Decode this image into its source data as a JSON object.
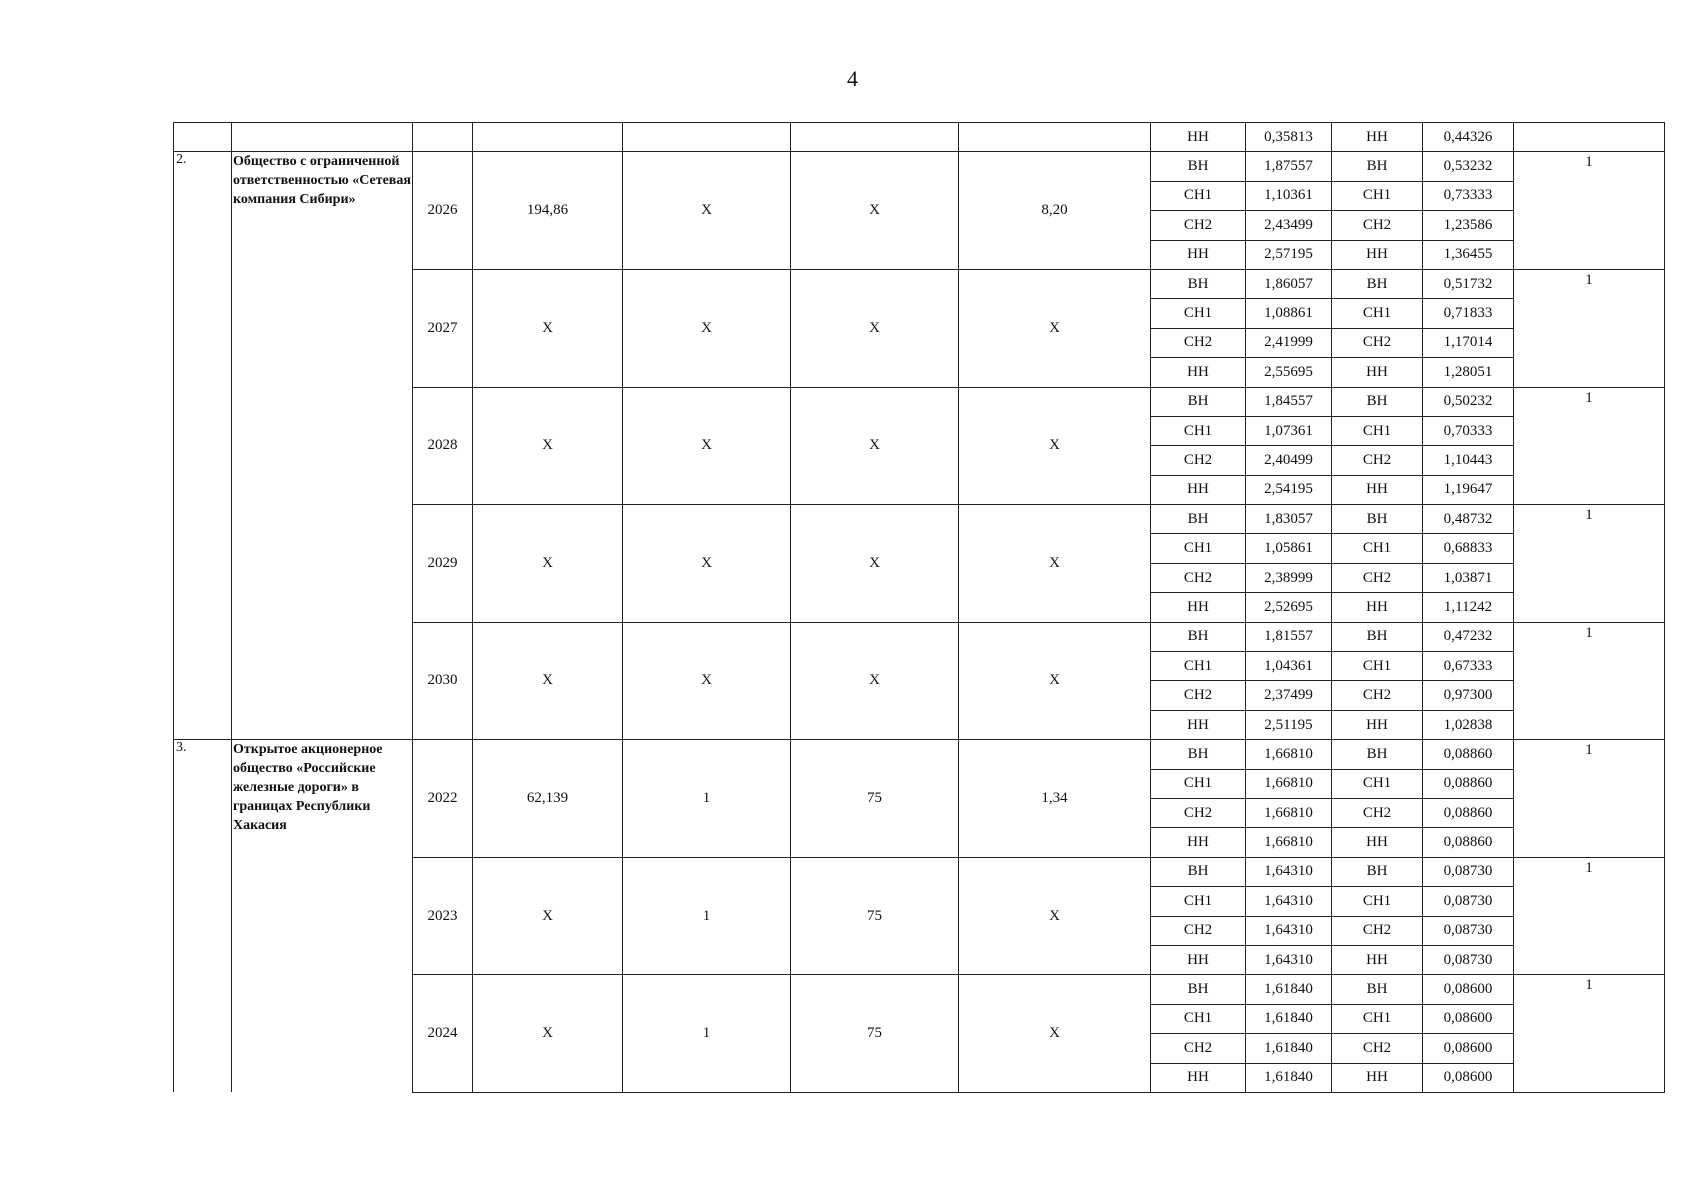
{
  "page_number": "4",
  "top_row": {
    "cells": [
      "НН",
      "0,35813",
      "НН",
      "0,44326"
    ]
  },
  "orgs": [
    {
      "num": "2.",
      "name": "Общество с ограниченной ответственностью «Сетевая компания Сибири»",
      "years": [
        {
          "year": "2026",
          "c1": "194,86",
          "c2": "X",
          "c3": "X",
          "c4": "8,20",
          "note": "1",
          "rows": [
            [
              "ВН",
              "1,87557",
              "ВН",
              "0,53232"
            ],
            [
              "СН1",
              "1,10361",
              "СН1",
              "0,73333"
            ],
            [
              "СН2",
              "2,43499",
              "СН2",
              "1,23586"
            ],
            [
              "НН",
              "2,57195",
              "НН",
              "1,36455"
            ]
          ]
        },
        {
          "year": "2027",
          "c1": "X",
          "c2": "X",
          "c3": "X",
          "c4": "X",
          "note": "1",
          "rows": [
            [
              "ВН",
              "1,86057",
              "ВН",
              "0,51732"
            ],
            [
              "СН1",
              "1,08861",
              "СН1",
              "0,71833"
            ],
            [
              "СН2",
              "2,41999",
              "СН2",
              "1,17014"
            ],
            [
              "НН",
              "2,55695",
              "НН",
              "1,28051"
            ]
          ]
        },
        {
          "year": "2028",
          "c1": "X",
          "c2": "X",
          "c3": "X",
          "c4": "X",
          "note": "1",
          "rows": [
            [
              "ВН",
              "1,84557",
              "ВН",
              "0,50232"
            ],
            [
              "СН1",
              "1,07361",
              "СН1",
              "0,70333"
            ],
            [
              "СН2",
              "2,40499",
              "СН2",
              "1,10443"
            ],
            [
              "НН",
              "2,54195",
              "НН",
              "1,19647"
            ]
          ]
        },
        {
          "year": "2029",
          "c1": "X",
          "c2": "X",
          "c3": "X",
          "c4": "X",
          "note": "1",
          "rows": [
            [
              "ВН",
              "1,83057",
              "ВН",
              "0,48732"
            ],
            [
              "СН1",
              "1,05861",
              "СН1",
              "0,68833"
            ],
            [
              "СН2",
              "2,38999",
              "СН2",
              "1,03871"
            ],
            [
              "НН",
              "2,52695",
              "НН",
              "1,11242"
            ]
          ]
        },
        {
          "year": "2030",
          "c1": "X",
          "c2": "X",
          "c3": "X",
          "c4": "X",
          "note": "1",
          "rows": [
            [
              "ВН",
              "1,81557",
              "ВН",
              "0,47232"
            ],
            [
              "СН1",
              "1,04361",
              "СН1",
              "0,67333"
            ],
            [
              "СН2",
              "2,37499",
              "СН2",
              "0,97300"
            ],
            [
              "НН",
              "2,51195",
              "НН",
              "1,02838"
            ]
          ]
        }
      ]
    },
    {
      "num": "3.",
      "name": "Открытое акционерное общество «Российские железные дороги» в границах Республики Хакасия",
      "years": [
        {
          "year": "2022",
          "c1": "62,139",
          "c2": "1",
          "c3": "75",
          "c4": "1,34",
          "note": "1",
          "rows": [
            [
              "ВН",
              "1,66810",
              "ВН",
              "0,08860"
            ],
            [
              "СН1",
              "1,66810",
              "СН1",
              "0,08860"
            ],
            [
              "СН2",
              "1,66810",
              "СН2",
              "0,08860"
            ],
            [
              "НН",
              "1,66810",
              "НН",
              "0,08860"
            ]
          ]
        },
        {
          "year": "2023",
          "c1": "X",
          "c2": "1",
          "c3": "75",
          "c4": "X",
          "note": "1",
          "rows": [
            [
              "ВН",
              "1,64310",
              "ВН",
              "0,08730"
            ],
            [
              "СН1",
              "1,64310",
              "СН1",
              "0,08730"
            ],
            [
              "СН2",
              "1,64310",
              "СН2",
              "0,08730"
            ],
            [
              "НН",
              "1,64310",
              "НН",
              "0,08730"
            ]
          ]
        },
        {
          "year": "2024",
          "c1": "X",
          "c2": "1",
          "c3": "75",
          "c4": "X",
          "note": "1",
          "rows": [
            [
              "ВН",
              "1,61840",
              "ВН",
              "0,08600"
            ],
            [
              "СН1",
              "1,61840",
              "СН1",
              "0,08600"
            ],
            [
              "СН2",
              "1,61840",
              "СН2",
              "0,08600"
            ],
            [
              "НН",
              "1,61840",
              "НН",
              "0,08600"
            ]
          ]
        }
      ]
    }
  ]
}
